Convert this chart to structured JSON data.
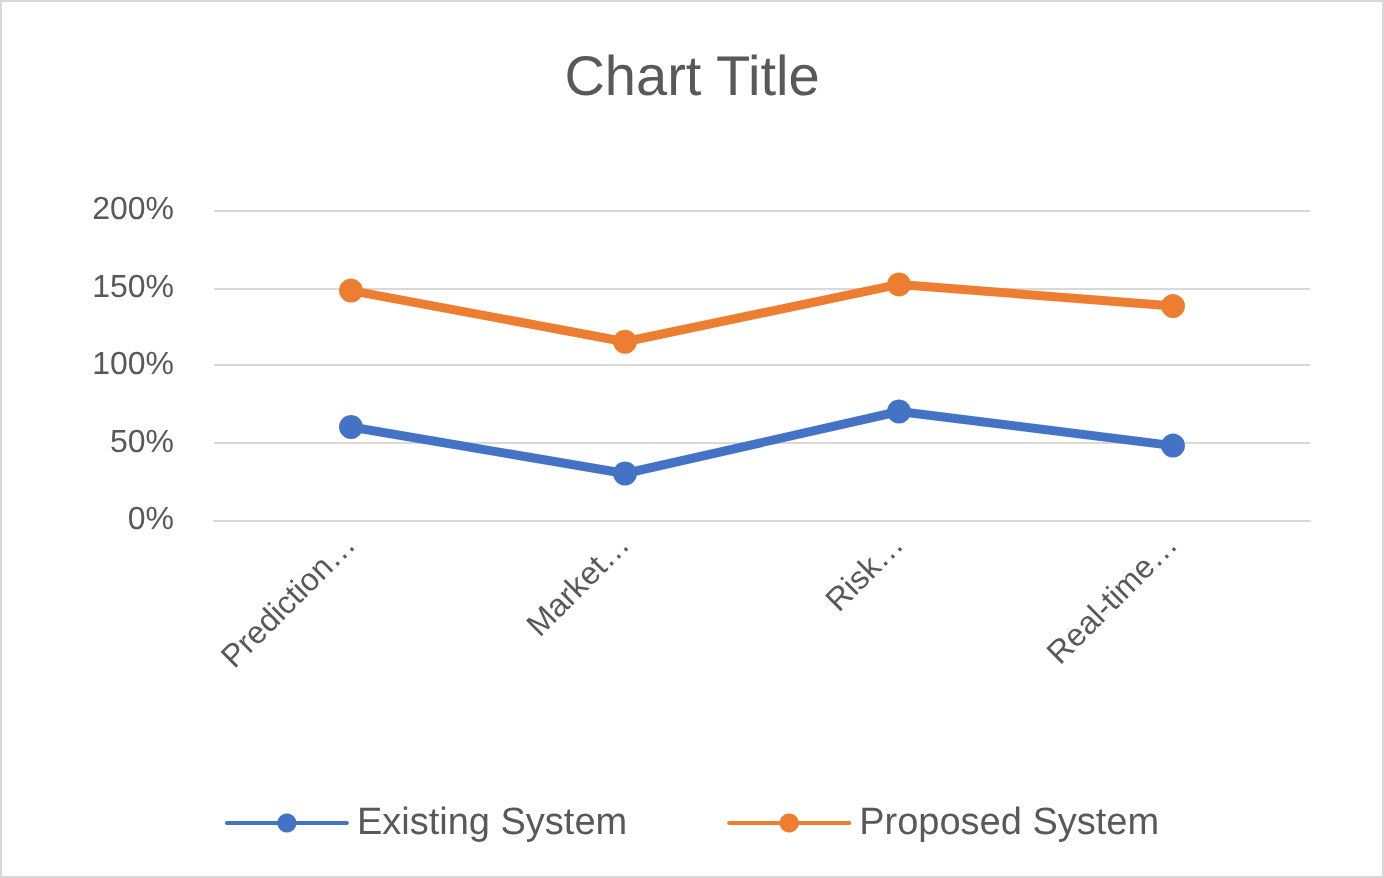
{
  "chart_data": {
    "type": "line",
    "title": "Chart Title",
    "categories": [
      "Prediction…",
      "Market…",
      "Risk…",
      "Real-time…"
    ],
    "series": [
      {
        "name": "Existing System",
        "color": "#4472c4",
        "values": [
          60,
          30,
          70,
          48
        ]
      },
      {
        "name": "Proposed System",
        "color": "#ed7d31",
        "values": [
          148,
          115,
          152,
          138
        ]
      }
    ],
    "ylim": [
      0,
      200
    ],
    "yticks": [
      {
        "value": 0,
        "label": "0%"
      },
      {
        "value": 50,
        "label": "50%"
      },
      {
        "value": 100,
        "label": "100%"
      },
      {
        "value": 150,
        "label": "150%"
      },
      {
        "value": 200,
        "label": "200%"
      }
    ],
    "grid": "y",
    "legend": "bottom",
    "marker": "circle",
    "line_style": "solid"
  }
}
